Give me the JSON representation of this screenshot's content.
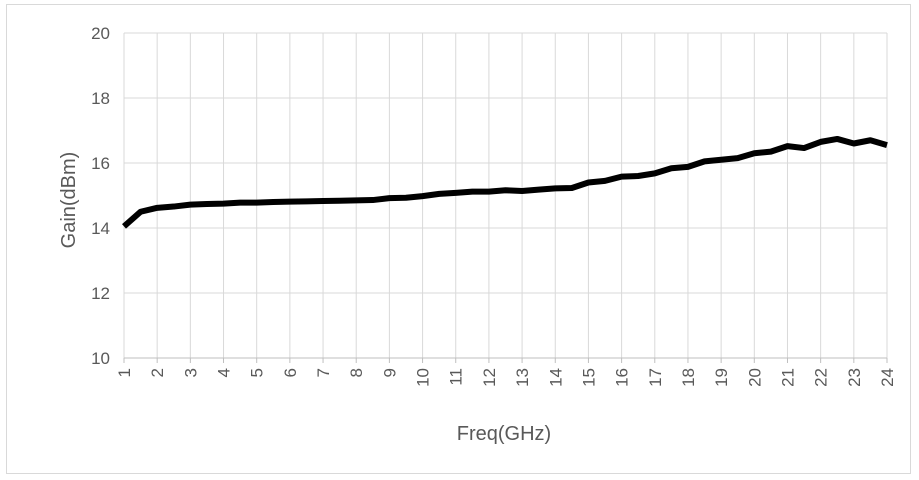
{
  "chart_data": {
    "type": "line",
    "title": "",
    "xlabel": "Freq(GHz)",
    "ylabel": "Gain(dBm)",
    "xlim": [
      1,
      24
    ],
    "ylim": [
      10,
      20
    ],
    "x_ticks": [
      1,
      2,
      3,
      4,
      5,
      6,
      7,
      8,
      9,
      10,
      11,
      12,
      13,
      14,
      15,
      16,
      17,
      18,
      19,
      20,
      21,
      22,
      23,
      24
    ],
    "y_ticks": [
      10,
      12,
      14,
      16,
      18,
      20
    ],
    "grid": true,
    "legend": "none",
    "line_color": "#000000",
    "series": [
      {
        "x": [
          1,
          1.5,
          2,
          2.5,
          3,
          3.5,
          4,
          4.5,
          5,
          5.5,
          6,
          6.5,
          7,
          7.5,
          8,
          8.5,
          9,
          9.5,
          10,
          10.5,
          11,
          11.5,
          12,
          12.5,
          13,
          13.5,
          14,
          14.5,
          15,
          15.5,
          16,
          16.5,
          17,
          17.5,
          18,
          18.5,
          19,
          19.5,
          20,
          20.5,
          21,
          21.5,
          22,
          22.5,
          23,
          23.5,
          24
        ],
        "values": [
          14.05,
          14.5,
          14.62,
          14.66,
          14.72,
          14.74,
          14.75,
          14.78,
          14.78,
          14.8,
          14.81,
          14.82,
          14.83,
          14.84,
          14.85,
          14.86,
          14.92,
          14.93,
          14.98,
          15.05,
          15.08,
          15.12,
          15.12,
          15.16,
          15.14,
          15.18,
          15.22,
          15.23,
          15.4,
          15.45,
          15.58,
          15.6,
          15.68,
          15.84,
          15.88,
          16.05,
          16.1,
          16.15,
          16.3,
          16.35,
          16.52,
          16.46,
          16.65,
          16.74,
          16.6,
          16.7,
          16.55
        ]
      }
    ]
  }
}
